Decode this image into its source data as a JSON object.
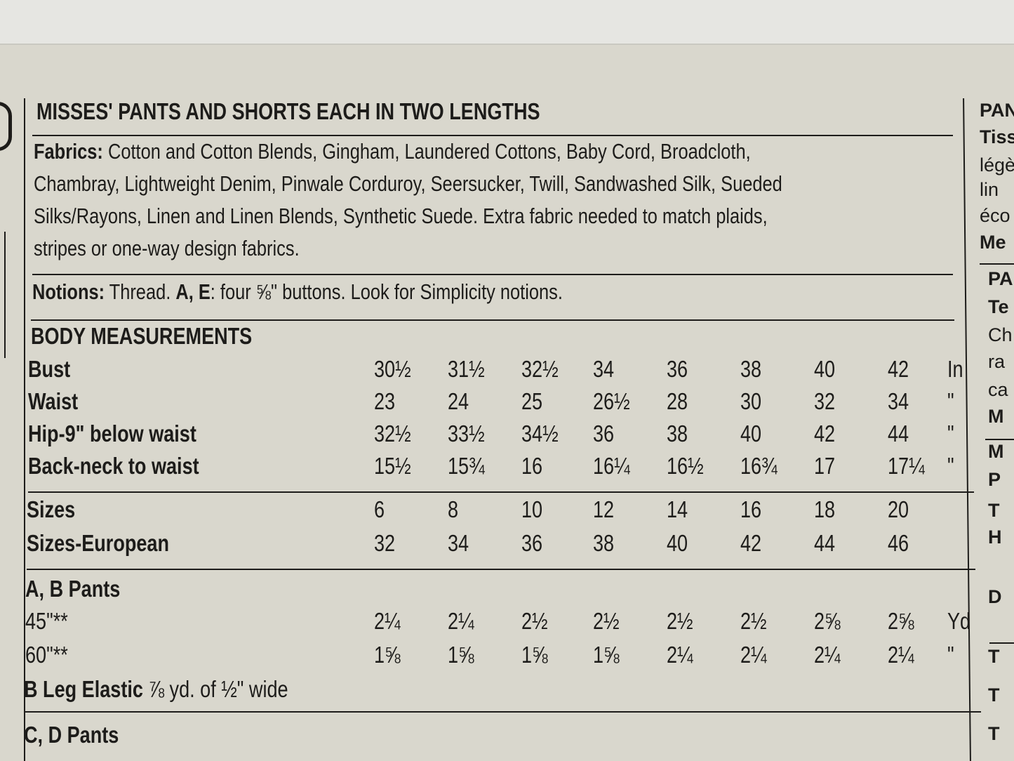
{
  "title": "MISSES' PANTS AND SHORTS EACH IN TWO LENGTHS",
  "fabrics": {
    "label": "Fabrics:",
    "lines": [
      " Cotton and Cotton Blends, Gingham, Laundered Cottons, Baby Cord, Broadcloth,",
      "Chambray, Lightweight Denim, Pinwale Corduroy, Seersucker, Twill, Sandwashed Silk, Sueded",
      "Silks/Rayons, Linen and Linen Blends, Synthetic Suede. Extra fabric needed to match plaids,",
      "stripes or one-way design fabrics."
    ]
  },
  "notions": {
    "label": "Notions:",
    "text1": " Thread. ",
    "views": "A, E",
    "text2": ": four ⅝\" buttons. Look for Simplicity notions."
  },
  "body_measurements": {
    "heading": "BODY MEASUREMENTS",
    "rows": [
      {
        "label": "Bust",
        "values": [
          "30½",
          "31½",
          "32½",
          "34",
          "36",
          "38",
          "40",
          "42"
        ],
        "unit": "In"
      },
      {
        "label": "Waist",
        "values": [
          "23",
          "24",
          "25",
          "26½",
          "28",
          "30",
          "32",
          "34"
        ],
        "unit": "\""
      },
      {
        "label": "Hip-9\" below waist",
        "values": [
          "32½",
          "33½",
          "34½",
          "36",
          "38",
          "40",
          "42",
          "44"
        ],
        "unit": "\""
      },
      {
        "label": "Back-neck to waist",
        "values": [
          "15½",
          "15¾",
          "16",
          "16¼",
          "16½",
          "16¾",
          "17",
          "17¼"
        ],
        "unit": "\""
      }
    ]
  },
  "sizes": [
    {
      "label": "Sizes",
      "values": [
        "6",
        "8",
        "10",
        "12",
        "14",
        "16",
        "18",
        "20"
      ]
    },
    {
      "label": "Sizes-European",
      "values": [
        "32",
        "34",
        "36",
        "38",
        "40",
        "42",
        "44",
        "46"
      ]
    }
  ],
  "ab_pants": {
    "heading": "A, B Pants",
    "rows": [
      {
        "label": "45\"**",
        "values": [
          "2¼",
          "2¼",
          "2½",
          "2½",
          "2½",
          "2½",
          "2⅝",
          "2⅝"
        ],
        "unit": "Yd"
      },
      {
        "label": "60\"**",
        "values": [
          "1⅝",
          "1⅝",
          "1⅝",
          "1⅝",
          "2¼",
          "2¼",
          "2¼",
          "2¼"
        ],
        "unit": "\""
      }
    ],
    "elastic_label": "B Leg Elastic",
    "elastic_text": " ⅞ yd. of ½\" wide"
  },
  "cd_pants": {
    "heading": "C, D Pants"
  },
  "right_column": [
    "PAN",
    "Tiss",
    "légè",
    "lin",
    "éco",
    "Me",
    "PA",
    "Te",
    "Ch",
    "ra",
    "ca",
    "M",
    "M",
    "P",
    "T",
    "H",
    "D",
    "T",
    "T",
    "T"
  ]
}
